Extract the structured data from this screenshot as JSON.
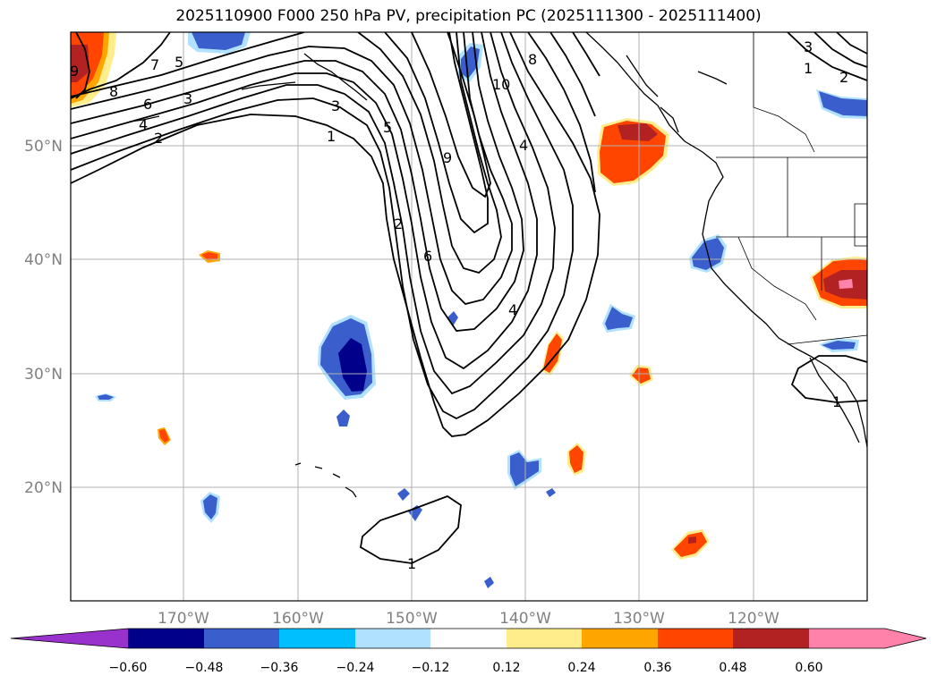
{
  "title": "2025110900 F000 250 hPa PV, precipitation PC (2025111300 - 2025111400)",
  "map": {
    "lat_labels": [
      "50°N",
      "40°N",
      "30°N",
      "20°N"
    ],
    "lon_labels": [
      "170°W",
      "160°W",
      "150°W",
      "140°W",
      "130°W",
      "120°W"
    ],
    "pv_contour_labels": [
      "7",
      "5",
      "9",
      "8",
      "6",
      "3",
      "4",
      "2",
      "3",
      "5",
      "1",
      "10",
      "8",
      "4",
      "9",
      "2",
      "6",
      "4",
      "1",
      "1",
      "3",
      "2",
      "1"
    ]
  },
  "colorbar": {
    "ticks": [
      "−0.60",
      "−0.48",
      "−0.36",
      "−0.24",
      "−0.12",
      "0.12",
      "0.24",
      "0.36",
      "0.48",
      "0.60"
    ],
    "colors": [
      "#9932cc",
      "#00008b",
      "#3a5fcd",
      "#00bfff",
      "#b0e2ff",
      "#ffffff",
      "#ffec8b",
      "#ffa500",
      "#ff4500",
      "#b22222",
      "#ff82ab"
    ]
  }
}
